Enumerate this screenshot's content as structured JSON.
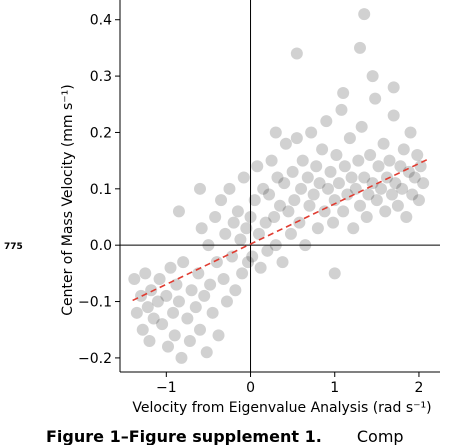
{
  "line_number": "775",
  "caption": {
    "bold_text": "Figure 1–Figure supplement 1.",
    "text": "Comp"
  },
  "chart_data": {
    "type": "scatter",
    "xlabel": "Velocity from Eigenvalue Analysis (rad s⁻¹)",
    "ylabel": "Center of Mass Velocity (mm s⁻¹)",
    "xlim": [
      -1.55,
      2.25
    ],
    "ylim": [
      -0.225,
      0.435
    ],
    "xticks": [
      {
        "value": -1,
        "label": "−1"
      },
      {
        "value": 0,
        "label": "0"
      },
      {
        "value": 1,
        "label": "1"
      },
      {
        "value": 2,
        "label": "2"
      }
    ],
    "yticks": [
      {
        "value": -0.2,
        "label": "−0.2"
      },
      {
        "value": -0.1,
        "label": "−0.1"
      },
      {
        "value": 0.0,
        "label": "0.0"
      },
      {
        "value": 0.1,
        "label": "0.1"
      },
      {
        "value": 0.2,
        "label": "0.2"
      },
      {
        "value": 0.3,
        "label": "0.3"
      },
      {
        "value": 0.4,
        "label": "0.4"
      }
    ],
    "grid": false,
    "reference_lines": {
      "x": 0,
      "y": 0
    },
    "fit_line": {
      "x": [
        -1.4,
        2.1
      ],
      "y": [
        -0.098,
        0.152
      ],
      "color": "#e03c31",
      "style": "dashed"
    },
    "point_color": "#000000",
    "point_opacity": 0.18,
    "points": [
      [
        -1.38,
        -0.06
      ],
      [
        -1.35,
        -0.12
      ],
      [
        -1.3,
        -0.09
      ],
      [
        -1.28,
        -0.15
      ],
      [
        -1.25,
        -0.05
      ],
      [
        -1.22,
        -0.11
      ],
      [
        -1.2,
        -0.17
      ],
      [
        -1.18,
        -0.08
      ],
      [
        -1.15,
        -0.13
      ],
      [
        -1.1,
        -0.1
      ],
      [
        -1.08,
        -0.06
      ],
      [
        -1.05,
        -0.14
      ],
      [
        -1.0,
        -0.09
      ],
      [
        -0.98,
        -0.18
      ],
      [
        -0.95,
        -0.04
      ],
      [
        -0.92,
        -0.12
      ],
      [
        -0.9,
        -0.16
      ],
      [
        -0.88,
        -0.07
      ],
      [
        -0.85,
        -0.1
      ],
      [
        -0.82,
        -0.2
      ],
      [
        -0.8,
        -0.03
      ],
      [
        -0.75,
        -0.13
      ],
      [
        -0.72,
        -0.17
      ],
      [
        -0.7,
        -0.08
      ],
      [
        -0.65,
        -0.11
      ],
      [
        -0.62,
        -0.05
      ],
      [
        -0.6,
        -0.15
      ],
      [
        -0.58,
        0.03
      ],
      [
        -0.55,
        -0.09
      ],
      [
        -0.52,
        -0.19
      ],
      [
        -0.5,
        0.0
      ],
      [
        -0.48,
        -0.07
      ],
      [
        -0.45,
        -0.12
      ],
      [
        -0.42,
        0.05
      ],
      [
        -0.4,
        -0.03
      ],
      [
        -0.38,
        -0.16
      ],
      [
        -0.35,
        0.08
      ],
      [
        -0.32,
        -0.06
      ],
      [
        -0.3,
        0.02
      ],
      [
        -0.28,
        -0.1
      ],
      [
        -0.25,
        0.1
      ],
      [
        -0.22,
        -0.02
      ],
      [
        -0.2,
        0.04
      ],
      [
        -0.18,
        -0.08
      ],
      [
        -0.15,
        0.06
      ],
      [
        -0.12,
        0.01
      ],
      [
        -0.1,
        -0.05
      ],
      [
        -0.08,
        0.12
      ],
      [
        -0.05,
        0.03
      ],
      [
        -0.03,
        -0.03
      ],
      [
        0.0,
        0.05
      ],
      [
        0.02,
        -0.02
      ],
      [
        0.05,
        0.08
      ],
      [
        0.08,
        0.14
      ],
      [
        0.1,
        0.02
      ],
      [
        0.12,
        -0.04
      ],
      [
        0.15,
        0.1
      ],
      [
        0.18,
        0.04
      ],
      [
        0.2,
        -0.01
      ],
      [
        0.22,
        0.09
      ],
      [
        0.25,
        0.15
      ],
      [
        0.28,
        0.05
      ],
      [
        0.3,
        0.0
      ],
      [
        0.32,
        0.12
      ],
      [
        0.35,
        0.07
      ],
      [
        0.38,
        -0.03
      ],
      [
        0.4,
        0.11
      ],
      [
        0.42,
        0.18
      ],
      [
        0.45,
        0.06
      ],
      [
        0.48,
        0.02
      ],
      [
        0.5,
        0.13
      ],
      [
        0.52,
        0.08
      ],
      [
        0.55,
        0.19
      ],
      [
        0.58,
        0.04
      ],
      [
        0.6,
        0.1
      ],
      [
        0.62,
        0.15
      ],
      [
        0.65,
        0.0
      ],
      [
        0.68,
        0.12
      ],
      [
        0.7,
        0.07
      ],
      [
        0.72,
        0.2
      ],
      [
        0.75,
        0.09
      ],
      [
        0.78,
        0.14
      ],
      [
        0.8,
        0.03
      ],
      [
        0.82,
        0.11
      ],
      [
        0.85,
        0.17
      ],
      [
        0.88,
        0.06
      ],
      [
        0.9,
        0.22
      ],
      [
        0.92,
        0.1
      ],
      [
        0.95,
        0.13
      ],
      [
        0.98,
        0.04
      ],
      [
        1.0,
        0.08
      ],
      [
        1.02,
        0.16
      ],
      [
        1.05,
        0.11
      ],
      [
        1.08,
        0.24
      ],
      [
        1.1,
        0.06
      ],
      [
        1.12,
        0.14
      ],
      [
        1.15,
        0.09
      ],
      [
        1.18,
        0.19
      ],
      [
        1.2,
        0.12
      ],
      [
        1.22,
        0.03
      ],
      [
        1.25,
        0.1
      ],
      [
        1.28,
        0.15
      ],
      [
        1.3,
        0.07
      ],
      [
        1.32,
        0.21
      ],
      [
        1.35,
        0.12
      ],
      [
        1.38,
        0.05
      ],
      [
        1.4,
        0.09
      ],
      [
        1.42,
        0.16
      ],
      [
        1.45,
        0.11
      ],
      [
        1.48,
        0.26
      ],
      [
        1.5,
        0.08
      ],
      [
        1.52,
        0.14
      ],
      [
        1.55,
        0.1
      ],
      [
        1.58,
        0.18
      ],
      [
        1.6,
        0.06
      ],
      [
        1.62,
        0.12
      ],
      [
        1.65,
        0.15
      ],
      [
        1.68,
        0.09
      ],
      [
        1.7,
        0.23
      ],
      [
        1.72,
        0.11
      ],
      [
        1.75,
        0.07
      ],
      [
        1.78,
        0.14
      ],
      [
        1.8,
        0.1
      ],
      [
        1.82,
        0.17
      ],
      [
        1.85,
        0.05
      ],
      [
        1.88,
        0.13
      ],
      [
        1.9,
        0.2
      ],
      [
        1.92,
        0.09
      ],
      [
        1.95,
        0.12
      ],
      [
        1.98,
        0.16
      ],
      [
        2.0,
        0.08
      ],
      [
        2.02,
        0.14
      ],
      [
        2.05,
        0.11
      ],
      [
        1.3,
        0.35
      ],
      [
        1.35,
        0.41
      ],
      [
        1.45,
        0.3
      ],
      [
        0.55,
        0.34
      ],
      [
        1.7,
        0.28
      ],
      [
        1.1,
        0.27
      ],
      [
        -0.6,
        0.1
      ],
      [
        -0.85,
        0.06
      ],
      [
        0.3,
        0.2
      ],
      [
        1.0,
        -0.05
      ]
    ]
  }
}
